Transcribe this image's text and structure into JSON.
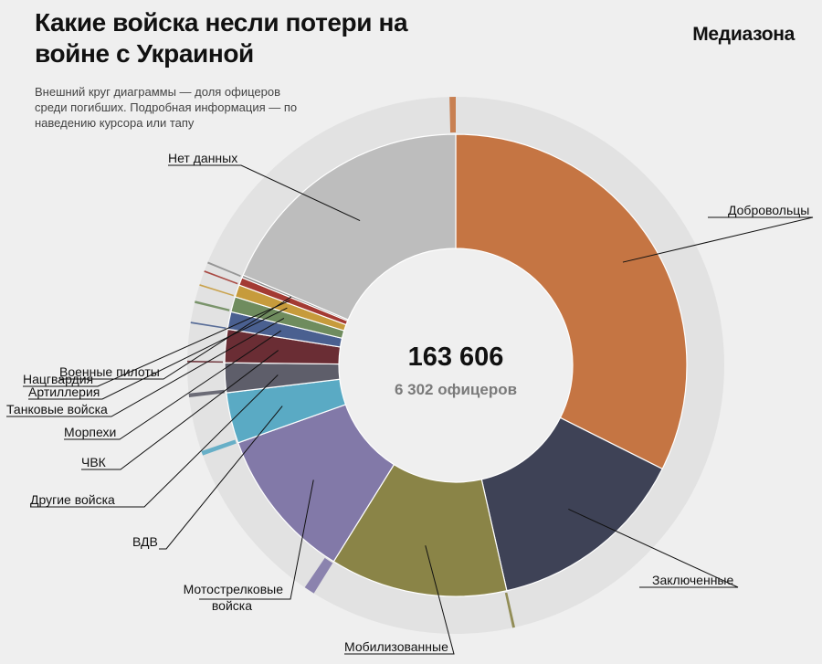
{
  "header": {
    "title": "Какие войска несли потери на войне с Украиной",
    "brand": "Медиазона",
    "subtitle": "Внешний круг диаграммы — доля офицеров среди погибших. Подробная информация — по наведению курсора или тапу"
  },
  "chart_data": {
    "type": "pie",
    "total_label": "163 606",
    "officers_label": "6 302 офицеров",
    "total": 163606,
    "officers_total": 6302,
    "segments": [
      {
        "key": "volunteers",
        "label": "Добровольцы",
        "value": 53000,
        "officer_share": 0.0,
        "color": "#c57543",
        "outer_color": "#c57543"
      },
      {
        "key": "prisoners",
        "label": "Заключенные",
        "value": 23000,
        "officer_share": 0.0,
        "color": "#3e4256",
        "outer_color": "#3e4256"
      },
      {
        "key": "mobilized",
        "label": "Мобилизованные",
        "value": 20300,
        "officer_share": 0.013,
        "color": "#8a8447",
        "outer_color": "#8a8447"
      },
      {
        "key": "motorized",
        "label": "Мотострелковые войска",
        "value": 17500,
        "officer_share": 0.06,
        "color": "#8279a8",
        "outer_color": "#8279a8"
      },
      {
        "key": "vdv",
        "label": "ВДВ",
        "value": 5800,
        "officer_share": 0.075,
        "color": "#5aaac4",
        "outer_color": "#5aaac4"
      },
      {
        "key": "other",
        "label": "Другие войска",
        "value": 3400,
        "officer_share": 0.11,
        "color": "#5e5e6a",
        "outer_color": "#5e5e6a"
      },
      {
        "key": "pmc",
        "label": "ЧВК",
        "value": 3800,
        "officer_share": 0.02,
        "color": "#6a2d34",
        "outer_color": "#6a2d34"
      },
      {
        "key": "marines",
        "label": "Морпехи",
        "value": 2000,
        "officer_share": 0.06,
        "color": "#4a6090",
        "outer_color": "#4a6090"
      },
      {
        "key": "tank",
        "label": "Танковые войска",
        "value": 1750,
        "officer_share": 0.13,
        "color": "#6f8c5e",
        "outer_color": "#6f8c5e"
      },
      {
        "key": "artillery",
        "label": "Артиллерия",
        "value": 1400,
        "officer_share": 0.08,
        "color": "#c69b3c",
        "outer_color": "#c69b3c"
      },
      {
        "key": "rosgvardia",
        "label": "Нацгвардия",
        "value": 900,
        "officer_share": 0.14,
        "color": "#a33a33",
        "outer_color": "#a33a33"
      },
      {
        "key": "pilots",
        "label": "Военные пилоты",
        "value": 300,
        "officer_share": 0.6,
        "color": "#8e8e8e",
        "outer_color": "#8e8e8e"
      },
      {
        "key": "nodata",
        "label": "Нет данных",
        "value": 30456,
        "officer_share": 0.02,
        "color": "#bdbdbd",
        "outer_color": "#c57543"
      }
    ]
  }
}
